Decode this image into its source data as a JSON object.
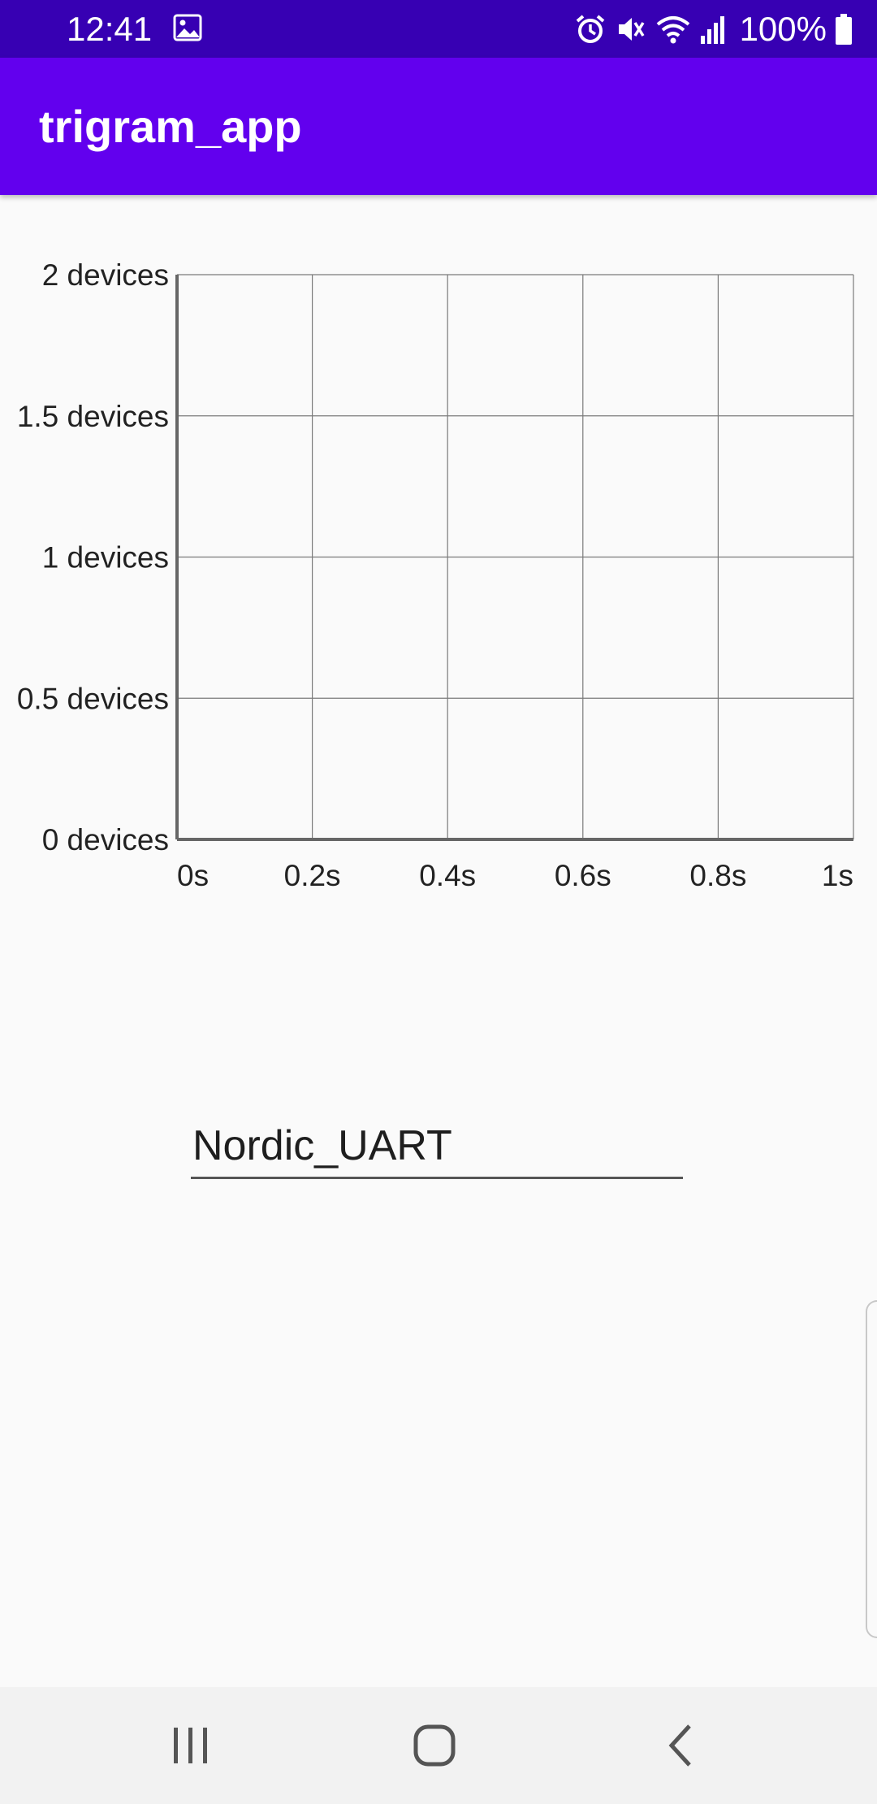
{
  "status_bar": {
    "time": "12:41",
    "battery_percent": "100%",
    "icons": [
      "gallery-icon",
      "alarm-icon",
      "mute-icon",
      "wifi-icon",
      "signal-icon",
      "battery-icon"
    ],
    "background": "#3700b3"
  },
  "app_bar": {
    "title": "trigram_app",
    "background": "#6200ee"
  },
  "chart_data": {
    "type": "line",
    "title": "",
    "xlabel": "",
    "ylabel": "",
    "x_tick_labels": [
      "0s",
      "0.2s",
      "0.4s",
      "0.6s",
      "0.8s",
      "1s"
    ],
    "y_tick_labels": [
      "2 devices",
      "1.5 devices",
      "1 devices",
      "0.5 devices",
      "0 devices"
    ],
    "xlim": [
      0,
      1
    ],
    "ylim": [
      0,
      2
    ],
    "grid": true,
    "series": []
  },
  "device_field": {
    "value": "Nordic_UART"
  },
  "nav_bar": {
    "icons": [
      "recent-apps-icon",
      "home-icon",
      "back-icon"
    ]
  }
}
